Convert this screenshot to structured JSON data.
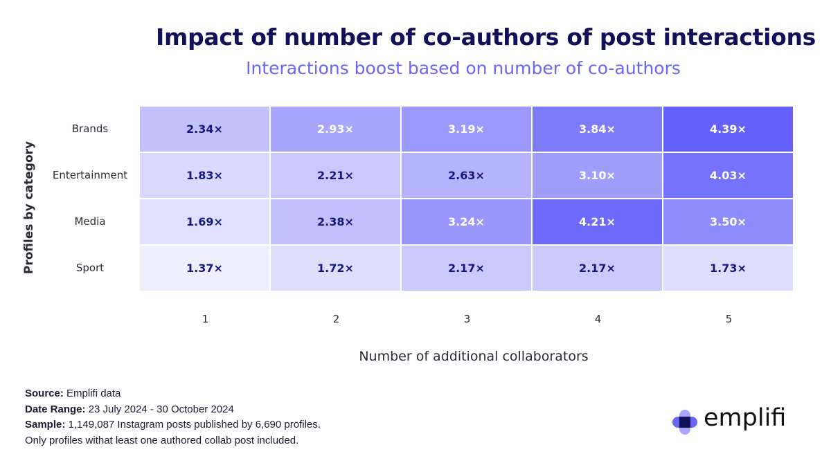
{
  "chart_data": {
    "type": "heatmap",
    "title": "Impact of number of co-authors of post interactions",
    "subtitle": "Interactions boost based on number of co-authors",
    "xlabel": "Number of additional collaborators",
    "ylabel": "Profiles by category",
    "columns": [
      "1",
      "2",
      "3",
      "4",
      "5"
    ],
    "rows": [
      {
        "label": "Brands",
        "values": [
          2.34,
          2.93,
          3.19,
          3.84,
          4.39
        ],
        "labels": [
          "2.34×",
          "2.93×",
          "3.19×",
          "3.84×",
          "4.39×"
        ]
      },
      {
        "label": "Entertainment",
        "values": [
          1.83,
          2.21,
          2.63,
          3.1,
          4.03
        ],
        "labels": [
          "1.83×",
          "2.21×",
          "2.63×",
          "3.10×",
          "4.03×"
        ]
      },
      {
        "label": "Media",
        "values": [
          1.69,
          2.38,
          3.24,
          4.21,
          3.5
        ],
        "labels": [
          "1.69×",
          "2.38×",
          "3.24×",
          "4.21×",
          "3.50×"
        ]
      },
      {
        "label": "Sport",
        "values": [
          1.37,
          1.72,
          2.17,
          2.17,
          1.73
        ],
        "labels": [
          "1.37×",
          "1.72×",
          "2.17×",
          "2.17×",
          "1.73×"
        ]
      }
    ],
    "color_low": "#efeefd",
    "color_high": "#6561fb",
    "text_dark": "#15177a",
    "text_light": "#ffffff"
  },
  "footer": {
    "source_key": "Source:",
    "source_val": "Emplifi data",
    "range_key": "Date Range:",
    "range_val": "23 July 2024 - 30 October 2024",
    "sample_key": "Sample:",
    "sample_val": "1,149,087 Instagram posts published by 6,690 profiles.",
    "note": "Only profiles withat least one authored collab post included."
  },
  "logo": {
    "text": "emplifi",
    "color_dark": "#111058",
    "color_mid": "#6a66f5",
    "color_light": "#a9a7fb"
  }
}
